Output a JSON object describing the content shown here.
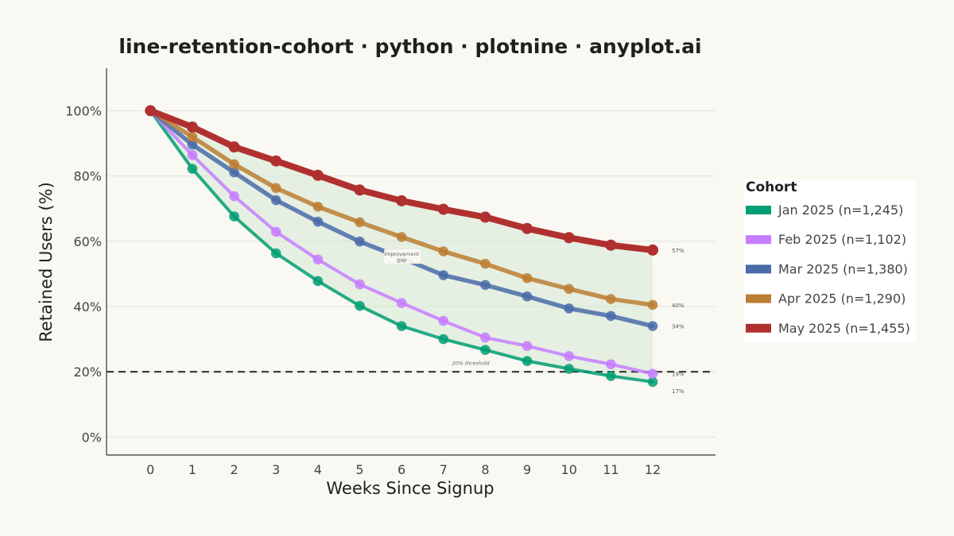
{
  "chart_data": {
    "type": "line",
    "title": "line-retention-cohort · python · plotnine · anyplot.ai",
    "xlabel": "Weeks Since Signup",
    "ylabel": "Retained Users (%)",
    "x": [
      0,
      1,
      2,
      3,
      4,
      5,
      6,
      7,
      8,
      9,
      10,
      11,
      12
    ],
    "x_ticks": [
      "0",
      "1",
      "2",
      "3",
      "4",
      "5",
      "6",
      "7",
      "8",
      "9",
      "10",
      "11",
      "12"
    ],
    "xlim": [
      -1.05,
      13.5
    ],
    "ylim": [
      -5.5,
      113
    ],
    "y_ticks": [
      0,
      20,
      40,
      60,
      80,
      100
    ],
    "y_tick_labels": [
      "0%",
      "20%",
      "40%",
      "60%",
      "80%",
      "100%"
    ],
    "grid": true,
    "legend": {
      "title": "Cohort",
      "position": "right"
    },
    "series": [
      {
        "name": "Jan 2025 (n=1,245)",
        "color": "#009E73",
        "values": [
          100,
          82.2,
          67.6,
          56.3,
          47.8,
          40.2,
          34.0,
          30.0,
          26.7,
          23.3,
          20.9,
          18.7,
          16.9
        ],
        "end_label": "17%"
      },
      {
        "name": "Feb 2025 (n=1,102)",
        "color": "#C77DFF",
        "values": [
          100,
          86.4,
          73.8,
          62.9,
          54.4,
          46.8,
          41.1,
          35.6,
          30.5,
          27.9,
          24.8,
          22.3,
          19.4
        ],
        "end_label": "19%"
      },
      {
        "name": "Mar 2025 (n=1,380)",
        "color": "#4A6BA8",
        "values": [
          100,
          89.6,
          81.1,
          72.6,
          66.0,
          59.9,
          54.9,
          49.6,
          46.6,
          43.1,
          39.4,
          37.1,
          34.0
        ],
        "end_label": "34%"
      },
      {
        "name": "Apr 2025 (n=1,290)",
        "color": "#BC7E33",
        "values": [
          100,
          92.0,
          83.6,
          76.3,
          70.6,
          65.8,
          61.3,
          56.9,
          53.1,
          48.7,
          45.4,
          42.3,
          40.5
        ],
        "end_label": "40%"
      },
      {
        "name": "May 2025 (n=1,455)",
        "color": "#B03030",
        "values": [
          100,
          95.0,
          88.9,
          84.6,
          80.2,
          75.7,
          72.4,
          69.8,
          67.4,
          63.9,
          61.1,
          58.8,
          57.3
        ],
        "end_label": "57%"
      }
    ],
    "band": {
      "from_series": 0,
      "to_series": 4,
      "color": "#d4e8d6"
    },
    "threshold": {
      "value": 20,
      "label": "20% threshold"
    },
    "annotation": {
      "text_line1": "Improvement",
      "text_line2": "gap",
      "x": 6.0,
      "y": 55.3
    }
  }
}
